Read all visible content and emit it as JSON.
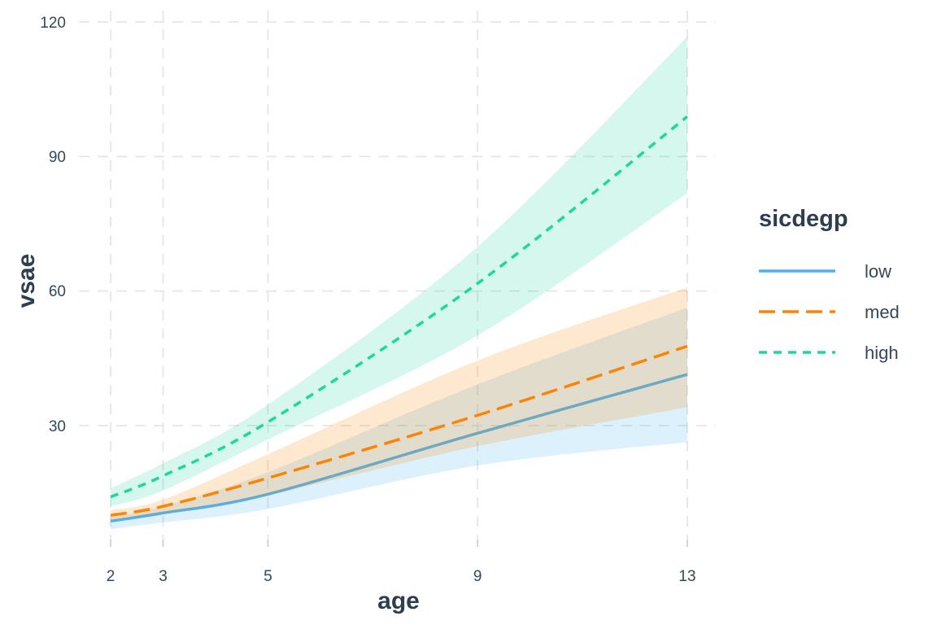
{
  "colors": {
    "title": "#2c3e50",
    "axis_text": "#31485e",
    "grid": "#e6e6e6",
    "tick_mark": "#cfcfcf",
    "background": "#ffffff",
    "series_low": "#4db2f0",
    "series_med": "#fb8402",
    "series_high": "#1ed69e"
  },
  "chart_data": {
    "type": "line",
    "title": "",
    "xlabel": "age",
    "ylabel": "vsae",
    "x": [
      2,
      3,
      5,
      9,
      13
    ],
    "xticks": [
      2,
      3,
      5,
      9,
      13
    ],
    "yticks": [
      30,
      60,
      90,
      120
    ],
    "xlim": [
      1.45,
      13.55
    ],
    "ylim": [
      3.5,
      122.5
    ],
    "grid": "dashed",
    "legend_title": "sicdegp",
    "legend_position": "right",
    "ribbon_note": "semi-transparent confidence ribbons around each line",
    "series": [
      {
        "name": "low",
        "color": "#4db2f0",
        "linetype": "solid",
        "values": [
          8.7,
          10.5,
          14.7,
          28.3,
          41.4
        ],
        "ci_lower": [
          6.9,
          8.4,
          11.4,
          21.1,
          26.3
        ],
        "ci_upper": [
          9.6,
          12.0,
          19.6,
          39.2,
          56.3
        ]
      },
      {
        "name": "med",
        "color": "#fb8402",
        "linetype": "longdash",
        "values": [
          10.0,
          12.0,
          18.3,
          32.3,
          47.7
        ],
        "ci_lower": [
          8.8,
          10.4,
          14.5,
          25.4,
          34.1
        ],
        "ci_upper": [
          11.1,
          13.5,
          23.6,
          44.5,
          60.8
        ]
      },
      {
        "name": "high",
        "color": "#1ed69e",
        "linetype": "dotted",
        "values": [
          14.1,
          18.8,
          30.8,
          61.7,
          98.9
        ],
        "ci_lower": [
          12.0,
          15.5,
          26.9,
          50.1,
          81.8
        ],
        "ci_upper": [
          16.0,
          21.6,
          34.7,
          69.9,
          116.7
        ]
      }
    ]
  }
}
